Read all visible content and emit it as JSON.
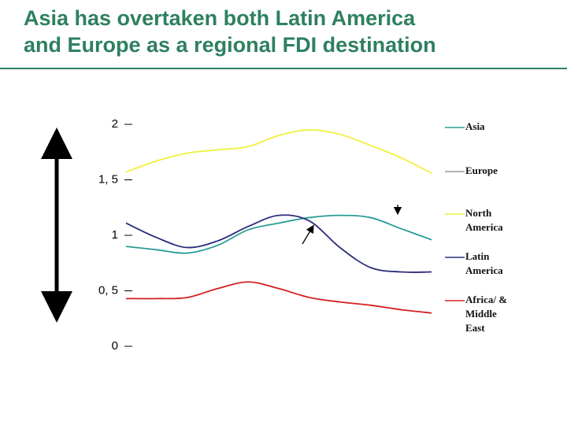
{
  "chart_data": {
    "type": "line",
    "title": "Asia has overtaken both Latin America and Europe as a regional FDI destination",
    "categories": [
      null,
      null,
      null,
      null,
      null,
      null,
      null,
      null,
      null,
      null,
      null
    ],
    "series": [
      {
        "color": "#f0f03c",
        "values": [
          1.57,
          1.67,
          1.74,
          1.77,
          1.8,
          1.9,
          1.95,
          1.91,
          1.81,
          1.7,
          1.56
        ]
      },
      {
        "color": "#2a9d96",
        "values": [
          0.9,
          0.87,
          0.84,
          0.91,
          1.05,
          1.11,
          1.16,
          1.18,
          1.16,
          1.06,
          0.96
        ]
      },
      {
        "color": "#2b2b7a",
        "values": [
          1.11,
          0.98,
          0.89,
          0.95,
          1.08,
          1.18,
          1.13,
          0.89,
          0.71,
          0.67,
          0.67
        ]
      },
      {
        "color": "#d42020",
        "values": [
          0.43,
          0.43,
          0.44,
          0.52,
          0.58,
          0.52,
          0.44,
          0.4,
          0.37,
          0.33,
          0.3
        ]
      }
    ],
    "legend": [
      {
        "label": [
          "Asia"
        ],
        "color": "#2a9d96"
      },
      {
        "label": [
          "Europe"
        ],
        "color": "#999999"
      },
      {
        "label": [
          "North",
          "America"
        ],
        "color": "#f0f03c"
      },
      {
        "label": [
          "Latin",
          "America"
        ],
        "color": "#2b2b7a"
      },
      {
        "label": [
          "Africa/ &",
          "Middle",
          "East"
        ],
        "color": "#d42020"
      }
    ],
    "ylim": [
      0,
      2
    ],
    "yticks": [
      {
        "value": 0,
        "label": "0"
      },
      {
        "value": 0.5,
        "label": "0, 5"
      },
      {
        "value": 1,
        "label": "1"
      },
      {
        "value": 1.5,
        "label": "1, 5"
      },
      {
        "value": 2,
        "label": "2"
      }
    ]
  }
}
